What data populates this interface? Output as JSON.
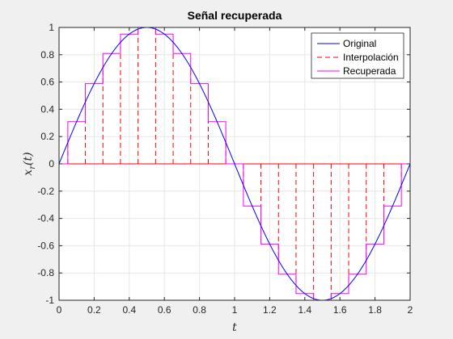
{
  "chart_data": {
    "type": "line",
    "title": "Señal recuperada",
    "xlabel": "t",
    "ylabel": "x_r(t)",
    "xlim": [
      0,
      2
    ],
    "ylim": [
      -1,
      1
    ],
    "grid": true,
    "legend_position": "top-right",
    "x_ticks": [
      0,
      0.2,
      0.4,
      0.6,
      0.8,
      1,
      1.2,
      1.4,
      1.6,
      1.8,
      2
    ],
    "x_tick_labels": [
      "0",
      "0.2",
      "0.4",
      "0.6",
      "0.8",
      "1",
      "1.2",
      "1.4",
      "1.6",
      "1.8",
      "2"
    ],
    "y_ticks": [
      -1,
      -0.8,
      -0.6,
      -0.4,
      -0.2,
      0,
      0.2,
      0.4,
      0.6,
      0.8,
      1
    ],
    "y_tick_labels": [
      "-1",
      "-0.8",
      "-0.6",
      "-0.4",
      "-0.2",
      "0",
      "0.2",
      "0.4",
      "0.6",
      "0.8",
      "1"
    ],
    "series": [
      {
        "name": "Original",
        "kind": "function",
        "formula": "sin(pi*t)",
        "x_range": [
          0,
          2
        ],
        "color": "#0000ff",
        "style": "solid"
      },
      {
        "name": "Interpolación",
        "kind": "stems",
        "x": [
          0.05,
          0.15,
          0.25,
          0.35,
          0.45,
          0.55,
          0.65,
          0.75,
          0.85,
          0.95,
          1.05,
          1.15,
          1.25,
          1.35,
          1.45,
          1.55,
          1.65,
          1.75,
          1.85,
          1.95
        ],
        "y": [
          0.156,
          0.454,
          0.707,
          0.891,
          0.988,
          0.988,
          0.891,
          0.707,
          0.454,
          0.156,
          -0.156,
          -0.454,
          -0.707,
          -0.891,
          -0.988,
          -0.988,
          -0.891,
          -0.707,
          -0.454,
          -0.156
        ],
        "color": "#ff0000",
        "style": "dashed"
      },
      {
        "name": "Recuperada",
        "kind": "stairs",
        "edges": [
          0,
          0.05,
          0.15,
          0.25,
          0.35,
          0.45,
          0.55,
          0.65,
          0.75,
          0.85,
          0.95,
          1.05,
          1.15,
          1.25,
          1.35,
          1.45,
          1.55,
          1.65,
          1.75,
          1.85,
          1.95,
          2
        ],
        "values": [
          0,
          0.309,
          0.588,
          0.809,
          0.951,
          1,
          0.951,
          0.809,
          0.588,
          0.309,
          0,
          -0.309,
          -0.588,
          -0.809,
          -0.951,
          -1,
          -0.951,
          -0.809,
          -0.588,
          -0.309,
          0
        ],
        "color": "#ff00ff",
        "style": "solid"
      }
    ]
  },
  "colors": {
    "figure_background": "#f0f0f0",
    "axes_background": "#ffffff",
    "grid": "#e6e6e6",
    "axis_line": "#262626"
  }
}
